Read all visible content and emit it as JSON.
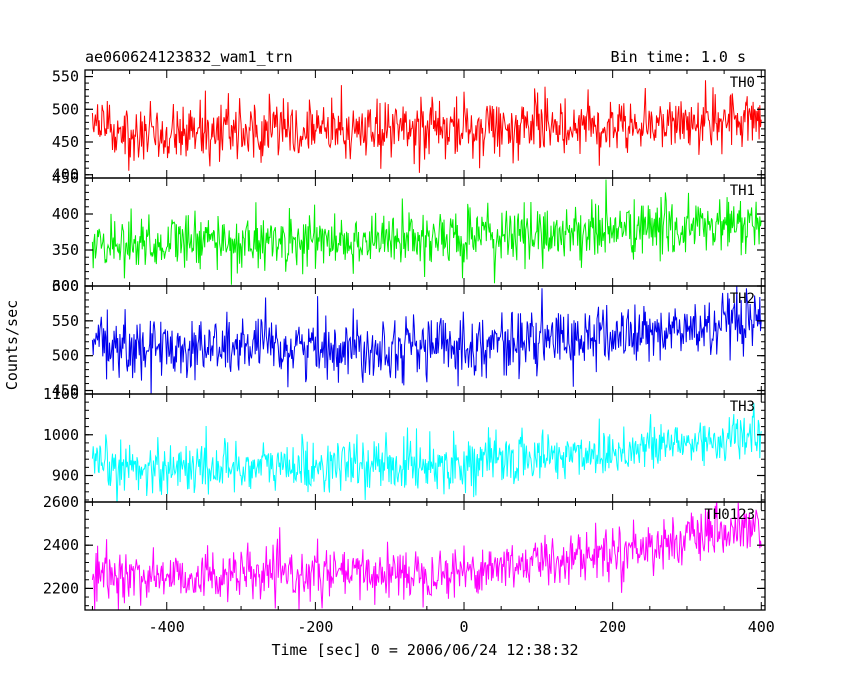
{
  "header": {
    "left": "ae060624123832_wam1_trn",
    "right": "Bin time: 1.0 s"
  },
  "chart_data": {
    "type": "line",
    "xlabel": "Time [sec] 0 = 2006/06/24 12:38:32",
    "ylabel": "Counts/sec",
    "xlim": [
      -510,
      405
    ],
    "xticks": [
      -400,
      -200,
      0,
      200,
      400
    ],
    "x": {
      "start": -500,
      "end": 400,
      "step": 1
    },
    "panels": [
      {
        "name": "TH0",
        "color": "#ff0000",
        "ylim": [
          395,
          560
        ],
        "yticks": [
          400,
          450,
          500,
          550
        ],
        "trend": [
          {
            "x": -500,
            "y": 468
          },
          {
            "x": -200,
            "y": 468
          },
          {
            "x": 0,
            "y": 470
          },
          {
            "x": 200,
            "y": 478
          },
          {
            "x": 400,
            "y": 482
          }
        ],
        "noise": 22
      },
      {
        "name": "TH1",
        "color": "#00ee00",
        "ylim": [
          300,
          450
        ],
        "yticks": [
          300,
          350,
          400,
          450
        ],
        "trend": [
          {
            "x": -500,
            "y": 360
          },
          {
            "x": -200,
            "y": 362
          },
          {
            "x": 0,
            "y": 366
          },
          {
            "x": 200,
            "y": 378
          },
          {
            "x": 400,
            "y": 385
          }
        ],
        "noise": 20
      },
      {
        "name": "TH2",
        "color": "#0000ee",
        "ylim": [
          445,
          600
        ],
        "yticks": [
          450,
          500,
          550,
          600
        ],
        "trend": [
          {
            "x": -500,
            "y": 512
          },
          {
            "x": -200,
            "y": 512
          },
          {
            "x": 0,
            "y": 515
          },
          {
            "x": 200,
            "y": 528
          },
          {
            "x": 400,
            "y": 545
          }
        ],
        "noise": 22
      },
      {
        "name": "TH3",
        "color": "#00ffff",
        "ylim": [
          835,
          1100
        ],
        "yticks": [
          900,
          1000,
          1100
        ],
        "trend": [
          {
            "x": -500,
            "y": 920
          },
          {
            "x": -200,
            "y": 922
          },
          {
            "x": 0,
            "y": 930
          },
          {
            "x": 200,
            "y": 960
          },
          {
            "x": 400,
            "y": 1000
          }
        ],
        "noise": 32
      },
      {
        "name": "TH0123",
        "color": "#ff00ff",
        "ylim": [
          2100,
          2600
        ],
        "yticks": [
          2200,
          2400,
          2600
        ],
        "trend": [
          {
            "x": -500,
            "y": 2255
          },
          {
            "x": -200,
            "y": 2262
          },
          {
            "x": 0,
            "y": 2280
          },
          {
            "x": 200,
            "y": 2370
          },
          {
            "x": 400,
            "y": 2480
          }
        ],
        "noise": 58
      }
    ]
  }
}
